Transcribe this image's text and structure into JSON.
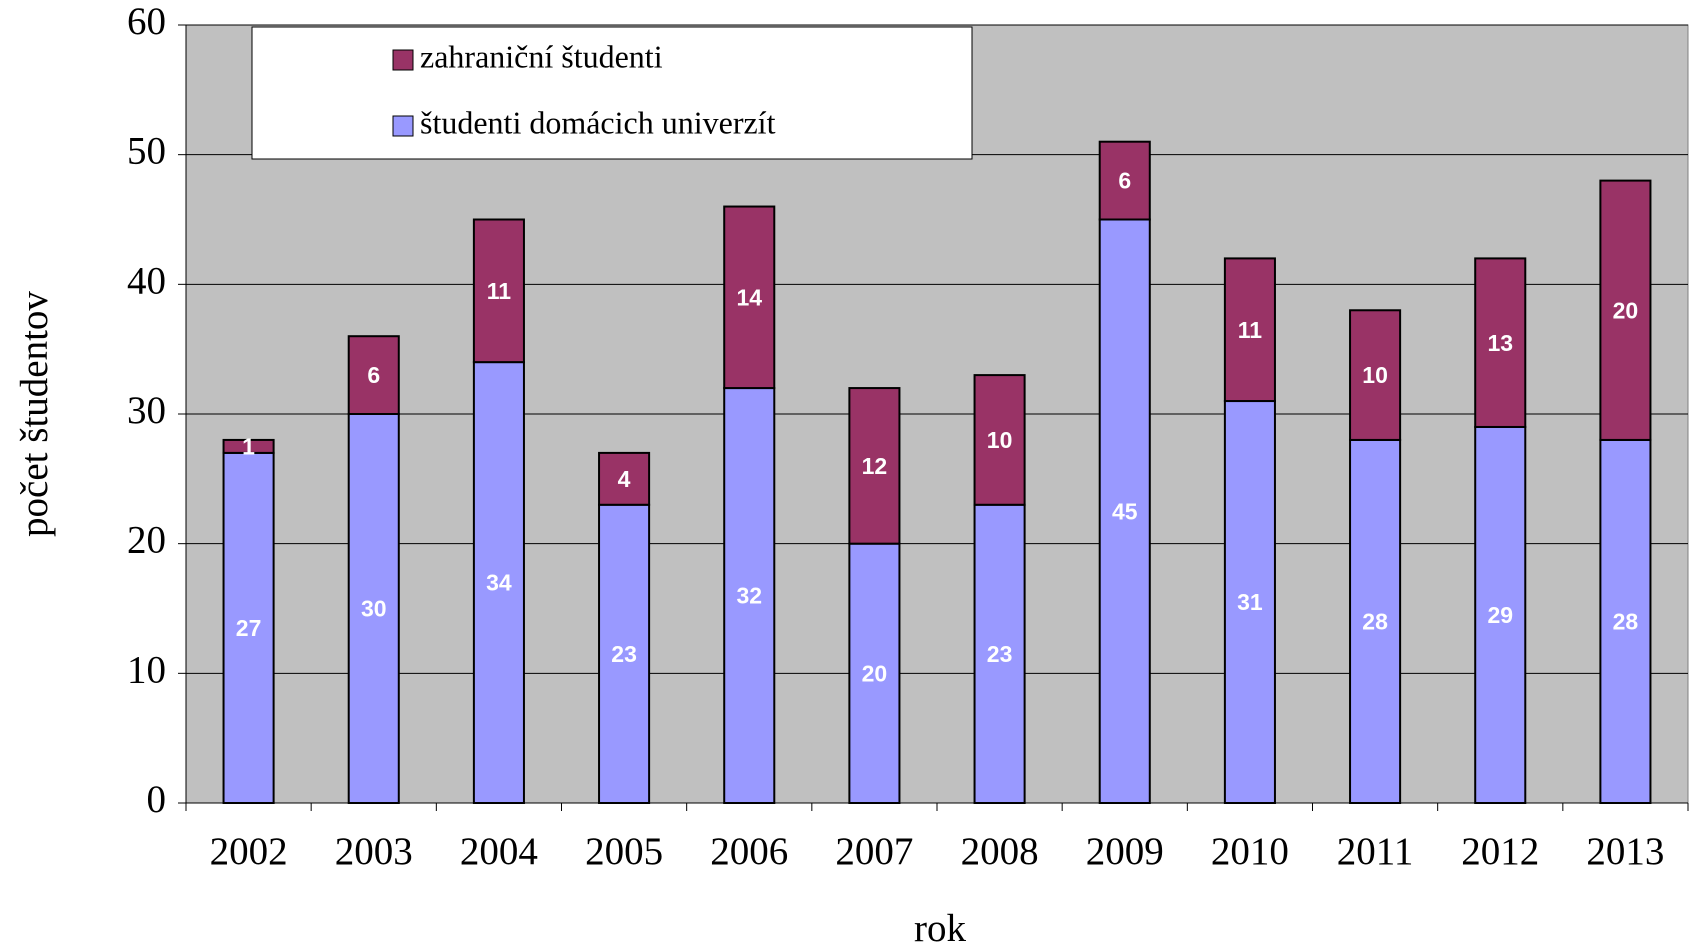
{
  "chart_data": {
    "type": "stacked_bar",
    "x_label": "rok",
    "y_label": "počet študentov",
    "categories": [
      "2002",
      "2003",
      "2004",
      "2005",
      "2006",
      "2007",
      "2008",
      "2009",
      "2010",
      "2011",
      "2012",
      "2013"
    ],
    "series": [
      {
        "name": "študenti domácich univerzít",
        "color": "#9999ff",
        "values": [
          27,
          30,
          34,
          23,
          32,
          20,
          23,
          45,
          31,
          28,
          29,
          28
        ]
      },
      {
        "name": "zahraniční študenti",
        "color": "#993366",
        "values": [
          1,
          6,
          11,
          4,
          14,
          12,
          10,
          6,
          11,
          10,
          13,
          20
        ]
      }
    ],
    "ylim": [
      0,
      60
    ],
    "yticks": [
      0,
      10,
      20,
      30,
      40,
      50,
      60
    ],
    "grid": true,
    "legend": "top-left"
  }
}
